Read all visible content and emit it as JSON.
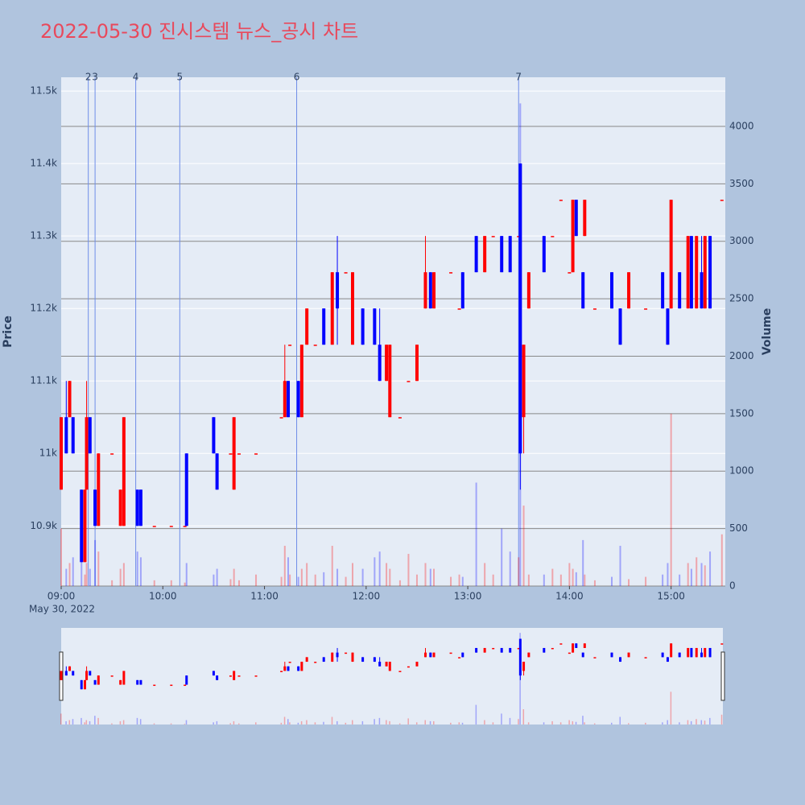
{
  "chart_data": {
    "type": "candlestick",
    "title": "2022-05-30 진시스템 뉴스_공시 차트",
    "ylabel": "Price",
    "y2label": "Volume",
    "date_label": "May 30, 2022",
    "increasing_color": "#ff0000",
    "decreasing_color": "#0000ff",
    "xlim": [
      "09:00",
      "15:32"
    ],
    "xticks": [
      "09:00",
      "10:00",
      "11:00",
      "12:00",
      "13:00",
      "14:00",
      "15:00"
    ],
    "ylim": [
      10817,
      11519
    ],
    "yticks": [
      {
        "value": 10900,
        "label": "10.9k"
      },
      {
        "value": 11000,
        "label": "11k"
      },
      {
        "value": 11100,
        "label": "11.1k"
      },
      {
        "value": 11200,
        "label": "11.2k"
      },
      {
        "value": 11300,
        "label": "11.3k"
      },
      {
        "value": 11400,
        "label": "11.4k"
      },
      {
        "value": 11500,
        "label": "11.5k"
      }
    ],
    "y2lim": [
      0,
      4427
    ],
    "y2ticks": [
      0,
      500,
      1000,
      1500,
      2000,
      2500,
      3000,
      3500,
      4000
    ],
    "news": [
      {
        "x": "09:16",
        "label": "2"
      },
      {
        "x": "09:20",
        "label": "3"
      },
      {
        "x": "09:44",
        "label": "4"
      },
      {
        "x": "10:10",
        "label": "5"
      },
      {
        "x": "11:19",
        "label": "6"
      },
      {
        "x": "13:30",
        "label": "7"
      }
    ],
    "x": [
      "09:00",
      "09:03",
      "09:05",
      "09:07",
      "09:12",
      "09:14",
      "09:15",
      "09:17",
      "09:20",
      "09:22",
      "09:30",
      "09:35",
      "09:37",
      "09:45",
      "09:47",
      "09:55",
      "10:05",
      "10:13",
      "10:14",
      "10:30",
      "10:32",
      "10:40",
      "10:42",
      "10:45",
      "10:55",
      "11:10",
      "11:12",
      "11:14",
      "11:15",
      "11:20",
      "11:22",
      "11:25",
      "11:30",
      "11:35",
      "11:40",
      "11:43",
      "11:48",
      "11:52",
      "11:58",
      "12:05",
      "12:08",
      "12:12",
      "12:14",
      "12:20",
      "12:25",
      "12:30",
      "12:35",
      "12:38",
      "12:40",
      "12:50",
      "12:55",
      "12:57",
      "13:05",
      "13:10",
      "13:15",
      "13:20",
      "13:25",
      "13:30",
      "13:31",
      "13:33",
      "13:36",
      "13:45",
      "13:50",
      "13:55",
      "14:00",
      "14:02",
      "14:04",
      "14:08",
      "14:09",
      "14:15",
      "14:25",
      "14:30",
      "14:35",
      "14:45",
      "14:55",
      "14:58",
      "15:00",
      "15:05",
      "15:10",
      "15:12",
      "15:15",
      "15:18",
      "15:20",
      "15:23",
      "15:30"
    ],
    "open": [
      10950,
      11050,
      11050,
      11050,
      10950,
      10850,
      10950,
      11050,
      10950,
      10900,
      11000,
      10900,
      10900,
      10950,
      10950,
      10900,
      10900,
      10900,
      11000,
      11050,
      11000,
      11000,
      10950,
      11000,
      11000,
      11050,
      11050,
      11100,
      11150,
      11100,
      11050,
      11150,
      11150,
      11200,
      11150,
      11250,
      11250,
      11150,
      11200,
      11200,
      11150,
      11100,
      11050,
      11050,
      11100,
      11100,
      11200,
      11250,
      11200,
      11250,
      11200,
      11250,
      11300,
      11250,
      11300,
      11300,
      11300,
      11300,
      11400,
      11050,
      11200,
      11300,
      11300,
      11350,
      11250,
      11250,
      11350,
      11250,
      11300,
      11200,
      11250,
      11200,
      11200,
      11200,
      11250,
      11200,
      11200,
      11250,
      11200,
      11300,
      11200,
      11250,
      11200,
      11300,
      11350
    ],
    "high": [
      11050,
      11100,
      11100,
      11050,
      10950,
      10950,
      11100,
      11050,
      10950,
      11000,
      11000,
      10950,
      11050,
      10950,
      10950,
      10900,
      10900,
      10900,
      11000,
      11050,
      11000,
      11000,
      11050,
      11000,
      11000,
      11050,
      11150,
      11100,
      11150,
      11100,
      11150,
      11200,
      11150,
      11200,
      11250,
      11300,
      11250,
      11250,
      11200,
      11200,
      11200,
      11150,
      11150,
      11050,
      11100,
      11150,
      11300,
      11250,
      11250,
      11250,
      11200,
      11250,
      11300,
      11300,
      11300,
      11300,
      11300,
      11300,
      11400,
      11150,
      11250,
      11300,
      11300,
      11350,
      11250,
      11350,
      11350,
      11250,
      11350,
      11200,
      11250,
      11200,
      11250,
      11200,
      11250,
      11200,
      11350,
      11250,
      11300,
      11300,
      11300,
      11300,
      11300,
      11300,
      11350
    ],
    "low": [
      10950,
      11000,
      11050,
      11000,
      10850,
      10850,
      10950,
      11000,
      10900,
      10900,
      11000,
      10900,
      10900,
      10900,
      10900,
      10900,
      10900,
      10900,
      10900,
      11000,
      10950,
      11000,
      10950,
      11000,
      11000,
      11050,
      11050,
      11050,
      11150,
      11050,
      11050,
      11150,
      11150,
      11150,
      11150,
      11150,
      11250,
      11150,
      11150,
      11150,
      11100,
      11100,
      11050,
      11050,
      11100,
      11100,
      11200,
      11200,
      11200,
      11250,
      11200,
      11200,
      11250,
      11250,
      11300,
      11250,
      11250,
      11300,
      10950,
      11000,
      11200,
      11250,
      11300,
      11350,
      11250,
      11250,
      11300,
      11200,
      11300,
      11200,
      11200,
      11150,
      11200,
      11200,
      11200,
      11150,
      11200,
      11200,
      11200,
      11200,
      11200,
      11200,
      11200,
      11200,
      11350
    ],
    "close": [
      11050,
      11000,
      11100,
      11000,
      10850,
      10950,
      11050,
      11000,
      10900,
      11000,
      11000,
      10950,
      11050,
      10900,
      10900,
      10900,
      10900,
      10900,
      10900,
      11000,
      10950,
      11000,
      11050,
      11000,
      11000,
      11050,
      11100,
      11050,
      11150,
      11050,
      11150,
      11200,
      11150,
      11150,
      11250,
      11200,
      11250,
      11250,
      11150,
      11150,
      11100,
      11150,
      11150,
      11050,
      11100,
      11150,
      11250,
      11200,
      11250,
      11250,
      11200,
      11200,
      11250,
      11300,
      11300,
      11250,
      11250,
      11300,
      11000,
      11150,
      11250,
      11250,
      11300,
      11350,
      11250,
      11350,
      11300,
      11200,
      11350,
      11200,
      11200,
      11150,
      11250,
      11200,
      11200,
      11150,
      11350,
      11200,
      11300,
      11200,
      11300,
      11200,
      11300,
      11200,
      11350
    ],
    "volume": [
      500,
      150,
      200,
      250,
      300,
      100,
      200,
      150,
      400,
      300,
      50,
      150,
      200,
      300,
      250,
      50,
      50,
      30,
      200,
      100,
      150,
      60,
      150,
      50,
      100,
      80,
      350,
      250,
      100,
      80,
      150,
      200,
      100,
      120,
      350,
      150,
      80,
      200,
      150,
      250,
      300,
      200,
      150,
      50,
      280,
      100,
      200,
      150,
      150,
      80,
      100,
      80,
      900,
      200,
      100,
      500,
      300,
      250,
      4200,
      700,
      100,
      100,
      150,
      100,
      200,
      150,
      120,
      400,
      100,
      50,
      80,
      350,
      60,
      80,
      100,
      200,
      1500,
      100,
      200,
      150,
      250,
      200,
      180,
      300,
      450
    ]
  }
}
